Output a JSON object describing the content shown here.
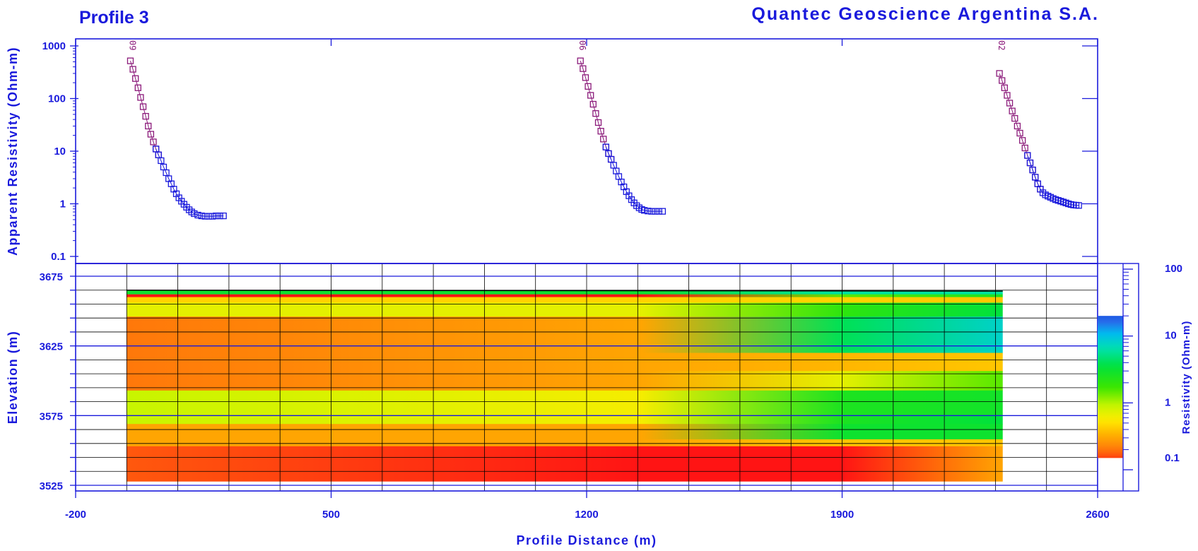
{
  "title_left": "Profile 3",
  "title_right": "Quantec Geoscience Argentina S.A.",
  "colors": {
    "axis": "#1a1adc",
    "grid": "#000000",
    "upper_branch": "#8b1a7a",
    "lower_branch": "#1a1adc"
  },
  "chart_data": [
    {
      "type": "scatter",
      "panel": "apparent-resistivity-soundings",
      "ylabel": "Apparent Resistivity (Ohm-m)",
      "yscale": "log",
      "ylim": [
        0.1,
        1000
      ],
      "ytick_labels": [
        "1000",
        "100",
        "10",
        "1",
        "0.1"
      ],
      "ytick_values": [
        1000,
        100,
        10,
        1,
        0.1
      ],
      "xlim": [
        -200,
        2600
      ],
      "grid": false,
      "stations": [
        {
          "label": "09",
          "x": 0,
          "series": [
            {
              "branch": "upper",
              "x": [
                -50,
                -43,
                -36,
                -29,
                -22,
                -15,
                -8,
                -1,
                6,
                13,
                20,
                27
              ],
              "y": [
                520,
                360,
                240,
                160,
                105,
                70,
                46,
                30,
                21,
                15,
                11,
                8.5
              ]
            },
            {
              "branch": "lower",
              "x": [
                20,
                27,
                34,
                41,
                48,
                55,
                62,
                69,
                76,
                83,
                90,
                97,
                104,
                111,
                118,
                125,
                135,
                145,
                155,
                165,
                175,
                185,
                195,
                205
              ],
              "y": [
                11,
                8.5,
                6.6,
                5.0,
                3.9,
                3.0,
                2.4,
                1.9,
                1.55,
                1.3,
                1.12,
                0.98,
                0.86,
                0.77,
                0.7,
                0.65,
                0.61,
                0.59,
                0.58,
                0.58,
                0.58,
                0.59,
                0.59,
                0.59
              ]
            }
          ]
        },
        {
          "label": "06",
          "x": 1200,
          "series": [
            {
              "branch": "upper",
              "x": [
                1183,
                1190,
                1197,
                1204,
                1211,
                1218,
                1225,
                1232,
                1239,
                1246,
                1253,
                1260,
                1267
              ],
              "y": [
                520,
                370,
                250,
                170,
                115,
                78,
                52,
                35,
                24,
                17,
                12,
                9,
                7
              ]
            },
            {
              "branch": "lower",
              "x": [
                1253,
                1260,
                1267,
                1274,
                1281,
                1288,
                1295,
                1302,
                1309,
                1316,
                1323,
                1330,
                1337,
                1344,
                1351,
                1358,
                1368,
                1378,
                1388,
                1398,
                1408
              ],
              "y": [
                12,
                9,
                7,
                5.4,
                4.2,
                3.3,
                2.6,
                2.1,
                1.7,
                1.42,
                1.2,
                1.04,
                0.92,
                0.84,
                0.78,
                0.75,
                0.73,
                0.72,
                0.72,
                0.72,
                0.72
              ]
            }
          ]
        },
        {
          "label": "02",
          "x": 2300,
          "series": [
            {
              "branch": "upper",
              "x": [
                2331,
                2338,
                2345,
                2352,
                2359,
                2366,
                2373,
                2380,
                2387,
                2394,
                2401,
                2408,
                2415,
                2422,
                2429,
                2436,
                2443
              ],
              "y": [
                300,
                220,
                160,
                115,
                82,
                58,
                42,
                30,
                22,
                16,
                11.5,
                8.3,
                6.0,
                4.4,
                3.2,
                2.4,
                1.9
              ]
            },
            {
              "branch": "lower",
              "x": [
                2408,
                2415,
                2422,
                2429,
                2436,
                2443,
                2450,
                2457,
                2464,
                2471,
                2478,
                2485,
                2492,
                2499,
                2506,
                2513,
                2520,
                2527,
                2534,
                2541,
                2548
              ],
              "y": [
                8.3,
                6.0,
                4.4,
                3.2,
                2.4,
                1.9,
                1.62,
                1.48,
                1.4,
                1.33,
                1.26,
                1.2,
                1.16,
                1.12,
                1.08,
                1.04,
                1.0,
                0.97,
                0.95,
                0.94,
                0.93
              ]
            }
          ]
        }
      ]
    },
    {
      "type": "heatmap",
      "panel": "resistivity-section",
      "xlabel": "Profile Distance (m)",
      "ylabel": "Elevation (m)",
      "xlim": [
        -200,
        2600
      ],
      "ylim": [
        3525,
        3675
      ],
      "xtick_labels": [
        "-200",
        "500",
        "1200",
        "1900",
        "2600"
      ],
      "xtick_values": [
        -200,
        500,
        1200,
        1900,
        2600
      ],
      "ytick_labels": [
        "3675",
        "3625",
        "3575",
        "3525"
      ],
      "ytick_values": [
        3675,
        3625,
        3575,
        3525
      ],
      "grid": true,
      "value_unit": "Ohm-m",
      "extent_x": [
        -60,
        2340
      ],
      "layer_edges_x": [
        -60,
        1350,
        1900,
        2340
      ],
      "layers": [
        {
          "top": 3665,
          "bottom": 3662,
          "values": [
            3.0,
            3.0,
            6.0,
            6.0
          ]
        },
        {
          "top": 3662,
          "bottom": 3660,
          "values": [
            0.12,
            0.12,
            1.5,
            2.5
          ]
        },
        {
          "top": 3660,
          "bottom": 3656,
          "values": [
            0.45,
            0.45,
            0.45,
            0.4
          ]
        },
        {
          "top": 3656,
          "bottom": 3646,
          "values": [
            0.7,
            0.7,
            2.0,
            3.5
          ]
        },
        {
          "top": 3646,
          "bottom": 3620,
          "values": [
            0.2,
            0.3,
            4.0,
            8.0
          ]
        },
        {
          "top": 3620,
          "bottom": 3615,
          "values": [
            0.2,
            0.3,
            0.35,
            0.4
          ]
        },
        {
          "top": 3615,
          "bottom": 3607,
          "values": [
            0.2,
            0.3,
            0.35,
            0.4
          ]
        },
        {
          "top": 3607,
          "bottom": 3593,
          "values": [
            0.2,
            0.3,
            0.7,
            1.5
          ]
        },
        {
          "top": 3593,
          "bottom": 3575,
          "values": [
            0.9,
            0.6,
            2.5,
            2.8
          ]
        },
        {
          "top": 3575,
          "bottom": 3569,
          "values": [
            0.9,
            0.6,
            2.5,
            3.5
          ]
        },
        {
          "top": 3569,
          "bottom": 3558,
          "values": [
            0.3,
            0.3,
            3.0,
            3.0
          ]
        },
        {
          "top": 3558,
          "bottom": 3553,
          "values": [
            0.3,
            0.3,
            0.4,
            0.4
          ]
        },
        {
          "top": 3553,
          "bottom": 3528,
          "values": [
            0.17,
            0.12,
            0.12,
            0.3
          ]
        }
      ]
    },
    {
      "type": "colorbar",
      "panel": "resistivity-colorbar",
      "label": "Resistivity (Ohm-m)",
      "scale": "log",
      "range": [
        0.1,
        100
      ],
      "tick_labels": [
        "100",
        "10",
        "1",
        "0.1"
      ],
      "tick_values": [
        100,
        10,
        1,
        0.1
      ],
      "colored_range": [
        0.15,
        20
      ]
    }
  ]
}
